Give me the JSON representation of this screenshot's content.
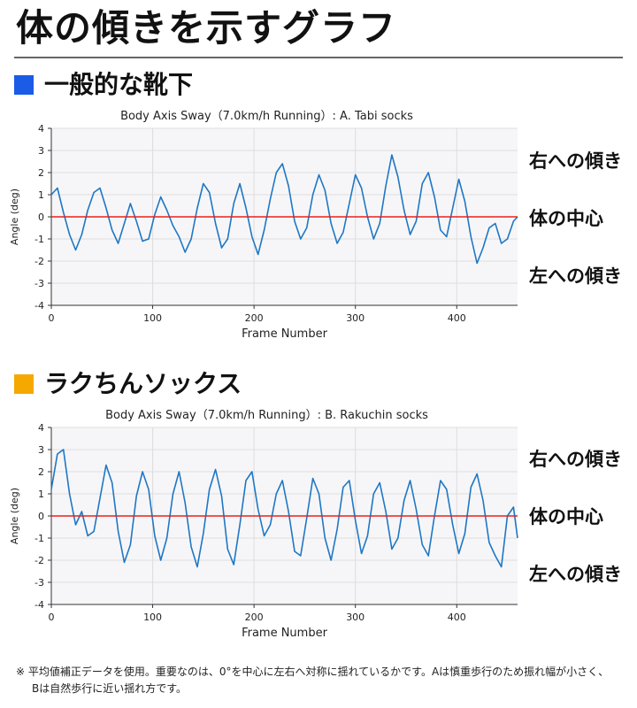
{
  "page_title": "体の傾きを示すグラフ",
  "sections": [
    {
      "heading": "一般的な靴下",
      "swatch_color": "#1a5ce6"
    },
    {
      "heading": "ラクちんソックス",
      "swatch_color": "#f5a800"
    }
  ],
  "side_labels": {
    "right_tilt": "右への傾き",
    "center": "体の中心",
    "left_tilt": "左への傾き"
  },
  "footnote": {
    "line1": "※ 平均値補正データを使用。重要なのは、0°を中心に左右へ対称に揺れているかです。Aは慎重歩行のため振れ幅が小さく、",
    "line2": "Bは自然歩行に近い揺れ方です。"
  },
  "colors": {
    "line": "#1f77c4",
    "zero_line": "#e8201c",
    "plot_bg": "#f6f6f8",
    "grid": "#dddddd"
  },
  "chart_data": [
    {
      "type": "line",
      "title": "Body Axis Sway（7.0km/h Running）: A. Tabi socks",
      "xlabel": "Frame Number",
      "ylabel": "Angle (deg)",
      "xlim": [
        0,
        460
      ],
      "ylim": [
        -4,
        4
      ],
      "x_ticks": [
        0,
        100,
        200,
        300,
        400
      ],
      "y_ticks": [
        4,
        3,
        2,
        1,
        0,
        -1,
        -2,
        -3,
        -4
      ],
      "grid": true,
      "reference_line": 0,
      "series": [
        {
          "x": [
            0,
            6,
            12,
            18,
            24,
            30,
            36,
            42,
            48,
            54,
            60,
            66,
            72,
            78,
            84,
            90,
            96,
            102,
            108,
            114,
            120,
            126,
            132,
            138,
            144,
            150,
            156,
            162,
            168,
            174,
            180,
            186,
            192,
            198,
            204,
            210,
            216,
            222,
            228,
            234,
            240,
            246,
            252,
            258,
            264,
            270,
            276,
            282,
            288,
            294,
            300,
            306,
            312,
            318,
            324,
            330,
            336,
            342,
            348,
            354,
            360,
            366,
            372,
            378,
            384,
            390,
            396,
            402,
            408,
            414,
            420,
            426,
            432,
            438,
            444,
            450,
            456,
            460
          ],
          "y": [
            1.0,
            1.3,
            0.2,
            -0.8,
            -1.5,
            -0.8,
            0.3,
            1.1,
            1.3,
            0.4,
            -0.6,
            -1.2,
            -0.3,
            0.6,
            -0.2,
            -1.1,
            -1.0,
            0.1,
            0.9,
            0.3,
            -0.4,
            -0.9,
            -1.6,
            -1.0,
            0.4,
            1.5,
            1.1,
            -0.3,
            -1.4,
            -1.0,
            0.6,
            1.5,
            0.4,
            -0.9,
            -1.7,
            -0.6,
            0.8,
            2.0,
            2.4,
            1.4,
            -0.2,
            -1.0,
            -0.5,
            1.0,
            1.9,
            1.2,
            -0.3,
            -1.2,
            -0.7,
            0.6,
            1.9,
            1.3,
            0.0,
            -1.0,
            -0.3,
            1.4,
            2.8,
            1.8,
            0.3,
            -0.8,
            -0.2,
            1.5,
            2.0,
            0.9,
            -0.6,
            -0.9,
            0.4,
            1.7,
            0.7,
            -0.9,
            -2.1,
            -1.4,
            -0.5,
            -0.3,
            -1.2,
            -1.0,
            -0.2,
            0.0
          ]
        }
      ]
    },
    {
      "type": "line",
      "title": "Body Axis Sway（7.0km/h Running）: B. Rakuchin socks",
      "xlabel": "Frame Number",
      "ylabel": "Angle (deg)",
      "xlim": [
        0,
        460
      ],
      "ylim": [
        -4,
        4
      ],
      "x_ticks": [
        0,
        100,
        200,
        300,
        400
      ],
      "y_ticks": [
        4,
        3,
        2,
        1,
        0,
        -1,
        -2,
        -3,
        -4
      ],
      "grid": true,
      "reference_line": 0,
      "series": [
        {
          "x": [
            0,
            6,
            12,
            18,
            24,
            30,
            36,
            42,
            48,
            54,
            60,
            66,
            72,
            78,
            84,
            90,
            96,
            102,
            108,
            114,
            120,
            126,
            132,
            138,
            144,
            150,
            156,
            162,
            168,
            174,
            180,
            186,
            192,
            198,
            204,
            210,
            216,
            222,
            228,
            234,
            240,
            246,
            252,
            258,
            264,
            270,
            276,
            282,
            288,
            294,
            300,
            306,
            312,
            318,
            324,
            330,
            336,
            342,
            348,
            354,
            360,
            366,
            372,
            378,
            384,
            390,
            396,
            402,
            408,
            414,
            420,
            426,
            432,
            438,
            444,
            450,
            456,
            460
          ],
          "y": [
            1.2,
            2.8,
            3.0,
            1.0,
            -0.4,
            0.2,
            -0.9,
            -0.7,
            0.8,
            2.3,
            1.5,
            -0.7,
            -2.1,
            -1.3,
            0.9,
            2.0,
            1.2,
            -0.9,
            -2.0,
            -1.0,
            1.0,
            2.0,
            0.6,
            -1.4,
            -2.3,
            -0.8,
            1.2,
            2.1,
            0.9,
            -1.5,
            -2.2,
            -0.4,
            1.6,
            2.0,
            0.3,
            -0.9,
            -0.4,
            1.0,
            1.6,
            0.2,
            -1.6,
            -1.8,
            -0.1,
            1.7,
            1.0,
            -1.0,
            -2.0,
            -0.6,
            1.3,
            1.6,
            -0.2,
            -1.7,
            -0.9,
            1.0,
            1.5,
            0.2,
            -1.5,
            -1.0,
            0.7,
            1.6,
            0.3,
            -1.3,
            -1.8,
            0.0,
            1.6,
            1.2,
            -0.4,
            -1.7,
            -0.8,
            1.3,
            1.9,
            0.7,
            -1.2,
            -1.8,
            -2.3,
            0.0,
            0.4,
            -1.0
          ]
        }
      ]
    }
  ]
}
